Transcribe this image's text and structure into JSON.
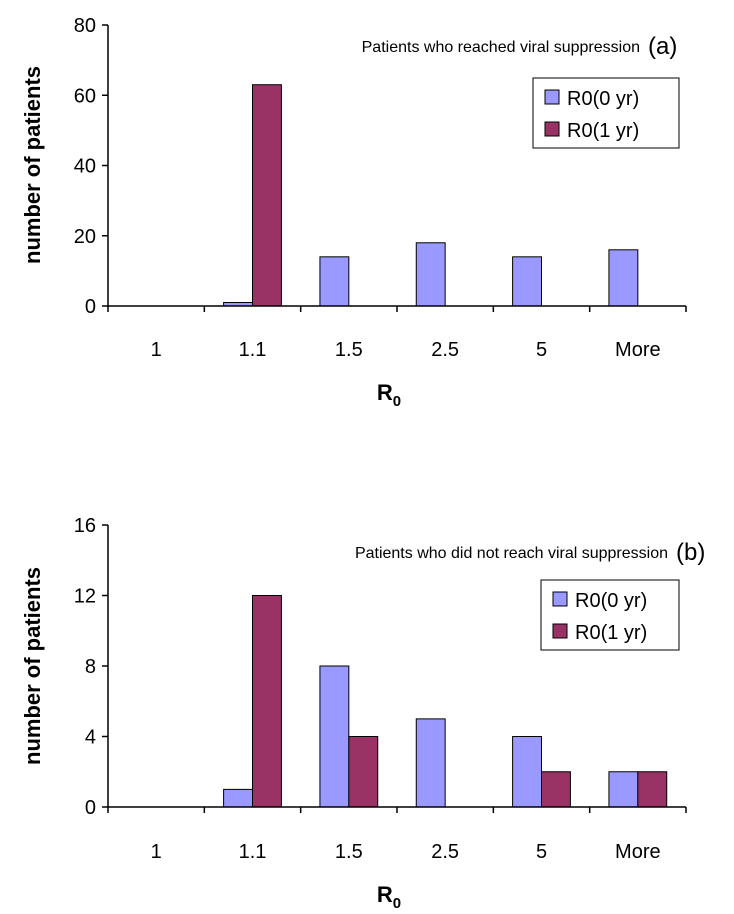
{
  "chart_data": [
    {
      "type": "bar",
      "panel_label": "(a)",
      "annotation": "Patients who reached viral suppression",
      "categories": [
        "1",
        "1.1",
        "1.5",
        "2.5",
        "5",
        "More"
      ],
      "series": [
        {
          "name": "R0(0 yr)",
          "color": "#9999ff",
          "values": [
            0,
            1,
            14,
            18,
            14,
            16
          ]
        },
        {
          "name": "R0(1 yr)",
          "color": "#993366",
          "values": [
            0,
            63,
            0,
            0,
            0,
            0
          ]
        }
      ],
      "ylim": [
        0,
        80
      ],
      "yticks": [
        "0",
        "20",
        "40",
        "60",
        "80"
      ],
      "ylabel": "number of patients",
      "xlabel": "R",
      "xlabel_sub": "0",
      "legend_position": "top-right",
      "grid": false
    },
    {
      "type": "bar",
      "panel_label": "(b)",
      "annotation": "Patients who did not reach viral suppression",
      "categories": [
        "1",
        "1.1",
        "1.5",
        "2.5",
        "5",
        "More"
      ],
      "series": [
        {
          "name": "R0(0 yr)",
          "color": "#9999ff",
          "values": [
            0,
            1,
            8,
            5,
            4,
            2
          ]
        },
        {
          "name": "R0(1 yr)",
          "color": "#993366",
          "values": [
            0,
            12,
            4,
            0,
            2,
            2
          ]
        }
      ],
      "ylim": [
        0,
        16
      ],
      "yticks": [
        "0",
        "4",
        "8",
        "12",
        "16"
      ],
      "ylabel": "number of patients",
      "xlabel": "R",
      "xlabel_sub": "0",
      "legend_position": "top-right",
      "grid": false
    }
  ]
}
